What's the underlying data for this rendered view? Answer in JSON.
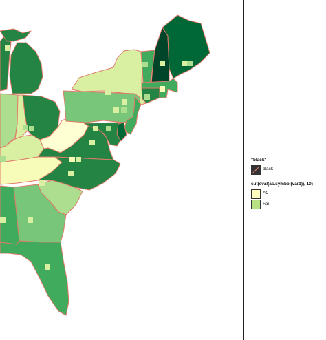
{
  "map": {
    "fill_classes": {
      "c1": "#ffffd4",
      "c2": "#f7fcb9",
      "c3": "#d9f0a3",
      "c4": "#addd8e",
      "c5": "#78c679",
      "c6": "#41ab5d",
      "c7": "#238443",
      "c8": "#006837",
      "c9": "#004529"
    },
    "state_border_color": "#e07a6a",
    "regions": [
      {
        "name": "Michigan",
        "class": "c7"
      },
      {
        "name": "Wisconsin",
        "class": "c7"
      },
      {
        "name": "Illinois",
        "class": "c4"
      },
      {
        "name": "Indiana",
        "class": "c3"
      },
      {
        "name": "Ohio",
        "class": "c7"
      },
      {
        "name": "Kentucky",
        "class": "c3"
      },
      {
        "name": "Tennessee",
        "class": "c2"
      },
      {
        "name": "West Virginia",
        "class": "c1"
      },
      {
        "name": "Virginia",
        "class": "c7"
      },
      {
        "name": "North Carolina",
        "class": "c7"
      },
      {
        "name": "South Carolina",
        "class": "c4"
      },
      {
        "name": "Georgia",
        "class": "c5"
      },
      {
        "name": "Alabama",
        "class": "c6"
      },
      {
        "name": "Mississippi",
        "class": "c6"
      },
      {
        "name": "Florida",
        "class": "c6"
      },
      {
        "name": "Pennsylvania",
        "class": "c5"
      },
      {
        "name": "New York",
        "class": "c3"
      },
      {
        "name": "New Jersey",
        "class": "c6"
      },
      {
        "name": "Maryland",
        "class": "c7"
      },
      {
        "name": "Delaware",
        "class": "c8"
      },
      {
        "name": "Vermont",
        "class": "c6"
      },
      {
        "name": "New Hampshire",
        "class": "c9"
      },
      {
        "name": "Maine",
        "class": "c8"
      },
      {
        "name": "Massachusetts",
        "class": "c6"
      },
      {
        "name": "Connecticut",
        "class": "c7"
      },
      {
        "name": "Rhode Island",
        "class": "c6"
      }
    ]
  },
  "legend": {
    "border_title": "\"black\"",
    "border_entries": [
      {
        "label": "black",
        "swatch": "#333333"
      }
    ],
    "fill_title": "cut(eval(as.symbol(var1)), 10)",
    "fill_entries": [
      {
        "label": "ACS",
        "swatch": "#ffffbf"
      },
      {
        "label": "Fairfax",
        "swatch": "#b8e186"
      }
    ]
  }
}
